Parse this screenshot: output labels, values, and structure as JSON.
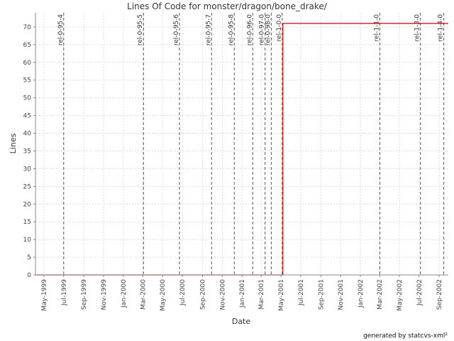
{
  "chart_data": {
    "type": "line",
    "title": "Lines Of Code for monster/dragon/bone_drake/",
    "xlabel": "Date",
    "ylabel": "Lines",
    "footer": "generated by statcvs-xml²",
    "xlim": [
      "1999-04-05",
      "2002-09-29"
    ],
    "ylim": [
      0,
      74
    ],
    "y_ticks": [
      0,
      5,
      10,
      15,
      20,
      25,
      30,
      35,
      40,
      45,
      50,
      55,
      60,
      65,
      70
    ],
    "x_ticks": [
      {
        "date": "1999-05-01",
        "label": "May-1999"
      },
      {
        "date": "1999-07-01",
        "label": "Jul-1999"
      },
      {
        "date": "1999-09-01",
        "label": "Sep-1999"
      },
      {
        "date": "1999-11-01",
        "label": "Nov-1999"
      },
      {
        "date": "2000-01-01",
        "label": "Jan-2000"
      },
      {
        "date": "2000-03-01",
        "label": "Mar-2000"
      },
      {
        "date": "2000-05-01",
        "label": "May-2000"
      },
      {
        "date": "2000-07-01",
        "label": "Jul-2000"
      },
      {
        "date": "2000-09-01",
        "label": "Sep-2000"
      },
      {
        "date": "2000-11-01",
        "label": "Nov-2000"
      },
      {
        "date": "2001-01-01",
        "label": "Jan-2001"
      },
      {
        "date": "2001-03-01",
        "label": "Mar-2001"
      },
      {
        "date": "2001-05-01",
        "label": "May-2001"
      },
      {
        "date": "2001-07-01",
        "label": "Jul-2001"
      },
      {
        "date": "2001-09-01",
        "label": "Sep-2001"
      },
      {
        "date": "2001-11-01",
        "label": "Nov-2001"
      },
      {
        "date": "2002-01-01",
        "label": "Jan-2002"
      },
      {
        "date": "2002-03-01",
        "label": "Mar-2002"
      },
      {
        "date": "2002-05-01",
        "label": "May-2002"
      },
      {
        "date": "2002-07-01",
        "label": "Jul-2002"
      },
      {
        "date": "2002-09-01",
        "label": "Sep-2002"
      }
    ],
    "grid": true,
    "line_color": "#cc0000",
    "series": [
      {
        "x": [
          "1999-04-05",
          "2001-05-07",
          "2001-05-07",
          "2002-09-29"
        ],
        "y": [
          0,
          0,
          71,
          71
        ]
      }
    ],
    "markers": [
      {
        "date": "1999-07-01",
        "label": "rel-0-95-4"
      },
      {
        "date": "2000-03-03",
        "label": "rel-0-95-5"
      },
      {
        "date": "2000-06-22",
        "label": "rel-0-95-6"
      },
      {
        "date": "2000-09-29",
        "label": "rel-0-95-7"
      },
      {
        "date": "2000-12-08",
        "label": "rel-0-95-8"
      },
      {
        "date": "2001-02-03",
        "label": "rel-0-96-0"
      },
      {
        "date": "2001-03-13",
        "label": "rel-0-97-0"
      },
      {
        "date": "2001-04-01",
        "label": "rel-0-98-0"
      },
      {
        "date": "2001-05-05",
        "label": "rel-1-0-0"
      },
      {
        "date": "2002-03-02",
        "label": "rel-1-1-0"
      },
      {
        "date": "2002-07-05",
        "label": "rel-1-3-0"
      },
      {
        "date": "2002-09-15",
        "label": "rel-1-4-0"
      }
    ]
  }
}
